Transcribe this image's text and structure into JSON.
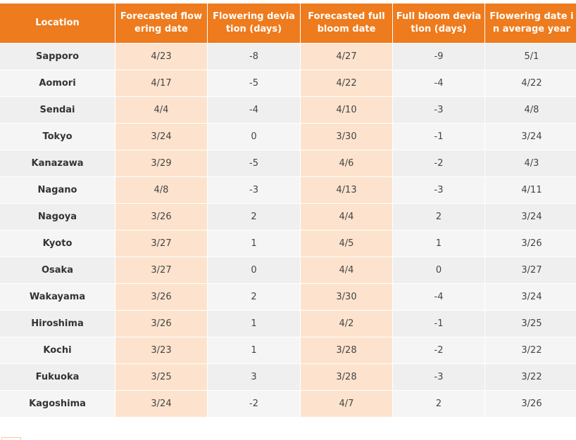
{
  "table": {
    "headers": [
      "Location",
      "Forecasted flowering date",
      "Flowering deviation (days)",
      "Forecasted full bloom date",
      "Full bloom deviation (days)",
      "Flowering date in average year"
    ],
    "rows": [
      [
        "Sapporo",
        "4/23",
        -8,
        "4/27",
        -9,
        "5/1"
      ],
      [
        "Aomori",
        "4/17",
        -5,
        "4/22",
        -4,
        "4/22"
      ],
      [
        "Sendai",
        "4/4",
        -4,
        "4/10",
        -3,
        "4/8"
      ],
      [
        "Tokyo",
        "3/24",
        0,
        "3/30",
        -1,
        "3/24"
      ],
      [
        "Kanazawa",
        "3/29",
        -5,
        "4/6",
        -2,
        "4/3"
      ],
      [
        "Nagano",
        "4/8",
        -3,
        "4/13",
        -3,
        "4/11"
      ],
      [
        "Nagoya",
        "3/26",
        2,
        "4/4",
        2,
        "3/24"
      ],
      [
        "Kyoto",
        "3/27",
        1,
        "4/5",
        1,
        "3/26"
      ],
      [
        "Osaka",
        "3/27",
        0,
        "4/4",
        0,
        "3/27"
      ],
      [
        "Wakayama",
        "3/26",
        2,
        "3/30",
        -4,
        "3/24"
      ],
      [
        "Hiroshima",
        "3/26",
        1,
        "4/2",
        -1,
        "3/25"
      ],
      [
        "Kochi",
        "3/23",
        1,
        "3/28",
        -2,
        "3/22"
      ],
      [
        "Fukuoka",
        "3/25",
        3,
        "3/28",
        -3,
        "3/22"
      ],
      [
        "Kagoshima",
        "3/24",
        -2,
        "4/7",
        2,
        "3/26"
      ]
    ]
  }
}
